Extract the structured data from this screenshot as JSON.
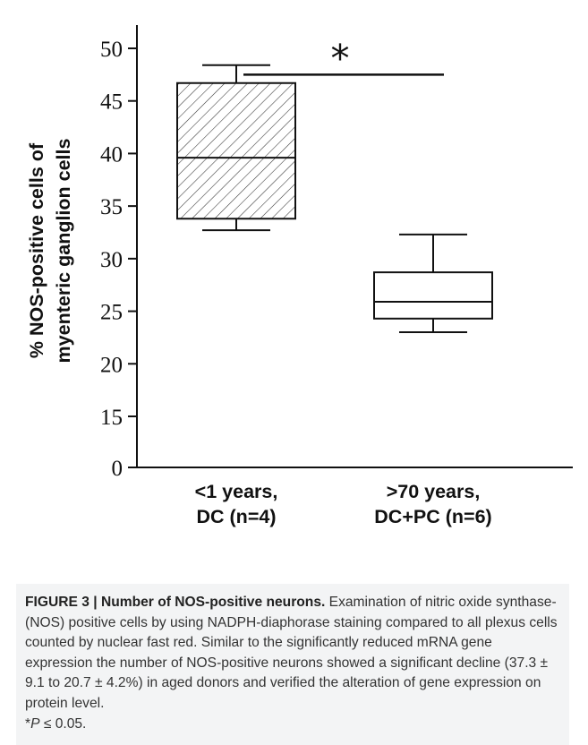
{
  "chart_data": {
    "type": "boxplot",
    "ylabel_lines": [
      "% NOS-positive cells of",
      "myenteric ganglion cells"
    ],
    "yticks": [
      0,
      15,
      20,
      25,
      30,
      35,
      40,
      45,
      50
    ],
    "ylim": [
      0,
      50
    ],
    "axis_break": true,
    "categories": [
      {
        "line1": "<1 years,",
        "line2": "DC (n=4)"
      },
      {
        "line1": ">70 years,",
        "line2": "DC+PC (n=6)"
      }
    ],
    "boxes": [
      {
        "whisker_low": 32.7,
        "q1": 33.8,
        "median": 39.6,
        "q3": 46.7,
        "whisker_high": 48.4,
        "fill": "hatched"
      },
      {
        "whisker_low": 23.0,
        "q1": 24.3,
        "median": 25.9,
        "q3": 28.7,
        "whisker_high": 32.3,
        "fill": "white"
      }
    ],
    "significance": {
      "label": "*",
      "y": 47.5
    }
  },
  "caption": {
    "label": "FIGURE 3 | Number of NOS-positive neurons.",
    "text": " Examination of nitric oxide synthase- (NOS) positive cells by using NADPH-diaphorase staining compared to all plexus cells counted by nuclear fast red. Similar to the significantly reduced mRNA gene expression the number of NOS-positive neurons showed a significant decline (37.3 ± 9.1 to 20.7 ± 4.2%) in aged donors and verified the alteration of gene expression on protein level.",
    "pvalue_star": "*",
    "pvalue_p": "P",
    "pvalue_rest": " ≤ 0.05."
  }
}
